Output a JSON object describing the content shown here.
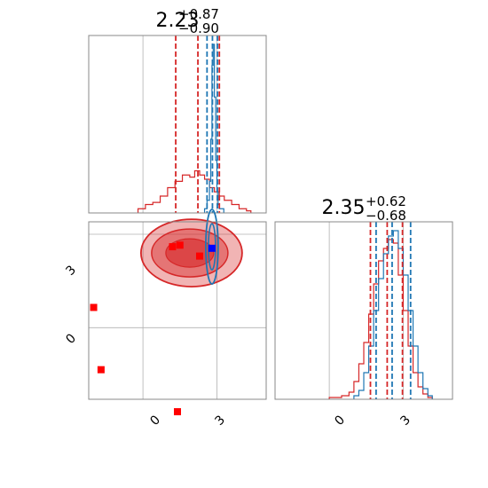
{
  "chart_data": {
    "type": "corner",
    "panels": [
      {
        "id": "hist-param1",
        "type": "histogram",
        "title": {
          "value": "2.23",
          "plus": "+0.87",
          "minus": "−0.90"
        },
        "xlim": [
          -2.2,
          5.0
        ],
        "series": [
          {
            "color": "#d62728",
            "bins": [
              [
                -0.2,
                0.02
              ],
              [
                0.1,
                0.04
              ],
              [
                0.4,
                0.05
              ],
              [
                0.7,
                0.08
              ],
              [
                1.0,
                0.12
              ],
              [
                1.3,
                0.15
              ],
              [
                1.6,
                0.18
              ],
              [
                1.9,
                0.17
              ],
              [
                2.1,
                0.2
              ],
              [
                2.3,
                0.18
              ],
              [
                2.5,
                0.16
              ],
              [
                2.7,
                0.12
              ],
              [
                2.9,
                0.1
              ],
              [
                3.1,
                0.08
              ],
              [
                3.3,
                0.06
              ],
              [
                3.6,
                0.04
              ],
              [
                3.9,
                0.02
              ],
              [
                4.2,
                0.01
              ]
            ]
          },
          {
            "color": "#1f77b4",
            "bins": [
              [
                2.5,
                0.02
              ],
              [
                2.6,
                0.06
              ],
              [
                2.7,
                0.15
              ],
              [
                2.75,
                0.35
              ],
              [
                2.8,
                0.7
              ],
              [
                2.85,
                0.8
              ],
              [
                2.9,
                0.55
              ],
              [
                2.95,
                0.25
              ],
              [
                3.0,
                0.1
              ],
              [
                3.05,
                0.04
              ],
              [
                3.1,
                0.02
              ]
            ]
          }
        ],
        "quantile_lines": [
          {
            "color": "#d62728",
            "values": [
              1.33,
              2.23,
              3.1
            ]
          },
          {
            "color": "#1f77b4",
            "values": [
              2.6,
              2.82,
              3.02
            ]
          }
        ]
      },
      {
        "id": "scatter-2d",
        "type": "contour",
        "xlim": [
          -2.2,
          5.0
        ],
        "ylim": [
          -2.3,
          3.4
        ],
        "xticks": [
          "0",
          "3"
        ],
        "yticks": [
          "0",
          "3"
        ],
        "red_markers": [
          [
            -2.0,
            0.65
          ],
          [
            -1.7,
            -1.35
          ],
          [
            1.2,
            2.6
          ],
          [
            1.5,
            2.65
          ],
          [
            2.3,
            2.3
          ],
          [
            1.4,
            -2.7
          ]
        ],
        "blue_markers": [
          [
            2.8,
            2.55
          ]
        ],
        "red_fill_color": "#d62728",
        "blue_contour_color": "#1f77b4"
      },
      {
        "id": "hist-param2",
        "type": "histogram",
        "title": {
          "value": "2.35",
          "plus": "+0.62",
          "minus": "−0.68"
        },
        "xlim": [
          -2.2,
          5.0
        ],
        "xticks": [
          "0",
          "3"
        ],
        "series": [
          {
            "color": "#d62728",
            "bins": [
              [
                0.0,
                0.01
              ],
              [
                0.5,
                0.02
              ],
              [
                0.8,
                0.04
              ],
              [
                1.0,
                0.1
              ],
              [
                1.2,
                0.2
              ],
              [
                1.4,
                0.32
              ],
              [
                1.6,
                0.48
              ],
              [
                1.8,
                0.65
              ],
              [
                2.0,
                0.78
              ],
              [
                2.2,
                0.85
              ],
              [
                2.4,
                0.9
              ],
              [
                2.6,
                0.88
              ],
              [
                2.8,
                0.7
              ],
              [
                3.0,
                0.5
              ],
              [
                3.2,
                0.3
              ],
              [
                3.4,
                0.15
              ],
              [
                3.6,
                0.07
              ],
              [
                3.8,
                0.03
              ],
              [
                4.0,
                0.01
              ]
            ]
          },
          {
            "color": "#1f77b4",
            "bins": [
              [
                1.0,
                0.02
              ],
              [
                1.2,
                0.05
              ],
              [
                1.4,
                0.15
              ],
              [
                1.6,
                0.3
              ],
              [
                1.8,
                0.5
              ],
              [
                2.0,
                0.68
              ],
              [
                2.2,
                0.82
              ],
              [
                2.4,
                0.92
              ],
              [
                2.6,
                0.95
              ],
              [
                2.8,
                0.85
              ],
              [
                3.0,
                0.7
              ],
              [
                3.2,
                0.5
              ],
              [
                3.4,
                0.3
              ],
              [
                3.6,
                0.15
              ],
              [
                3.8,
                0.06
              ],
              [
                4.0,
                0.02
              ]
            ]
          }
        ],
        "quantile_lines": [
          {
            "color": "#d62728",
            "values": [
              1.67,
              2.35,
              2.97
            ]
          },
          {
            "color": "#1f77b4",
            "values": [
              1.9,
              2.55,
              3.3
            ]
          }
        ]
      }
    ]
  }
}
